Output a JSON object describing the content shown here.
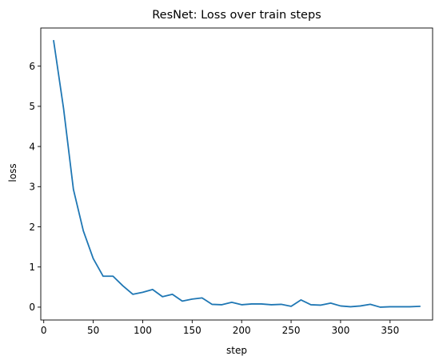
{
  "chart_data": {
    "type": "line",
    "title": "ResNet: Loss over train steps",
    "xlabel": "step",
    "ylabel": "loss",
    "xlim": [
      -3,
      393
    ],
    "ylim": [
      -0.32,
      6.95
    ],
    "xticks": [
      0,
      50,
      100,
      150,
      200,
      250,
      300,
      350
    ],
    "yticks": [
      0,
      1,
      2,
      3,
      4,
      5,
      6
    ],
    "grid": false,
    "legend": "none",
    "series": [
      {
        "color": "#1f77b4",
        "x": [
          10,
          20,
          30,
          40,
          50,
          60,
          70,
          80,
          90,
          100,
          110,
          120,
          130,
          140,
          150,
          160,
          170,
          180,
          190,
          200,
          210,
          220,
          230,
          240,
          250,
          260,
          270,
          280,
          290,
          300,
          310,
          320,
          330,
          340,
          350,
          360,
          370,
          380
        ],
        "y": [
          6.63,
          4.95,
          2.93,
          1.9,
          1.21,
          0.77,
          0.77,
          0.53,
          0.32,
          0.37,
          0.44,
          0.26,
          0.32,
          0.15,
          0.2,
          0.23,
          0.07,
          0.06,
          0.12,
          0.06,
          0.08,
          0.08,
          0.06,
          0.07,
          0.02,
          0.18,
          0.06,
          0.05,
          0.1,
          0.03,
          0.01,
          0.03,
          0.07,
          0.0,
          0.01,
          0.01,
          0.01,
          0.02
        ]
      }
    ]
  }
}
